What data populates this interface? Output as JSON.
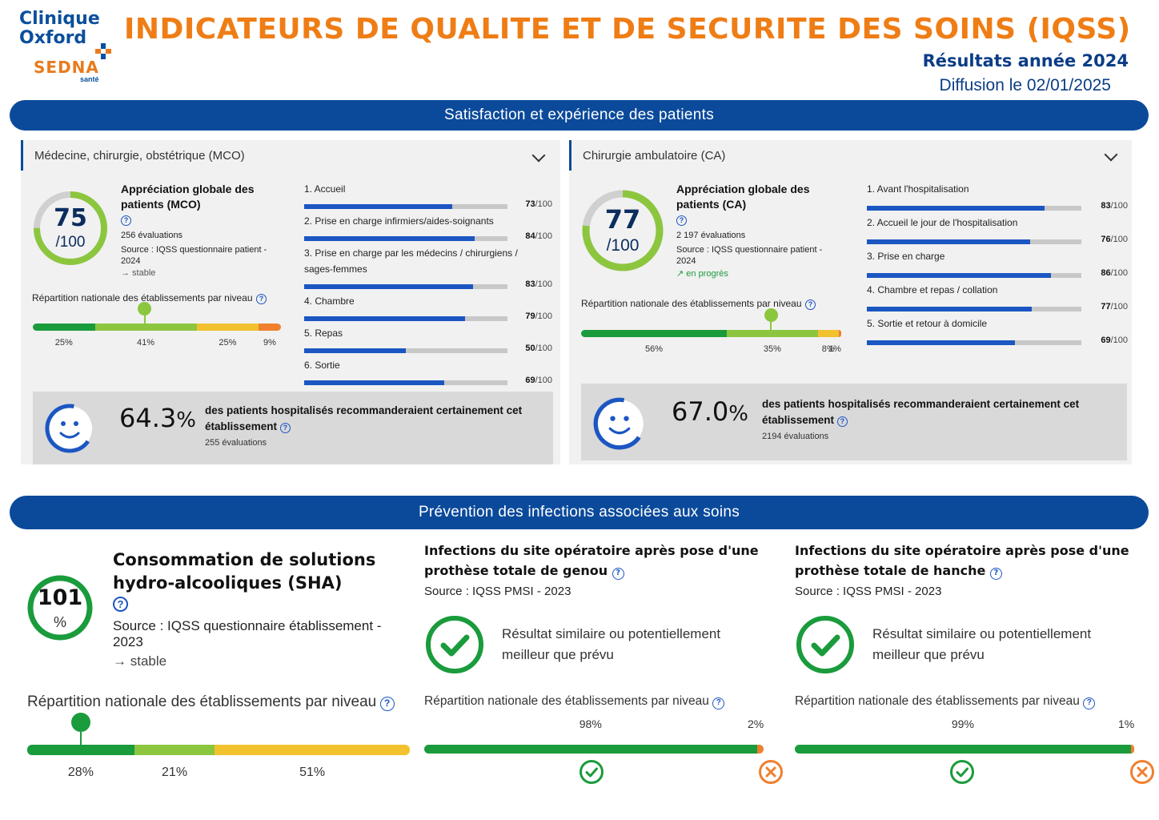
{
  "header": {
    "logo_line1": "Clinique",
    "logo_line2": "Oxford",
    "logo_sedna": "SEDNA",
    "logo_sante": "santé",
    "title": "INDICATEURS DE QUALITE ET DE SECURITE DES SOINS (IQSS)",
    "subtitle": "Résultats année 2024",
    "diffusion": "Diffusion le 02/01/2025"
  },
  "colors": {
    "brand_blue": "#0b4a9b",
    "accent_orange": "#ef7d15",
    "dark_green": "#1a9b3c",
    "light_green": "#8cc63f",
    "yellow": "#f2c12e",
    "orange": "#f07f2e",
    "bar_blue": "#1b56c2"
  },
  "section1": {
    "title": "Satisfaction et expérience des patients",
    "mco": {
      "heading": "Médecine, chirurgie, obstétrique (MCO)",
      "score": "75",
      "score_value": 75,
      "score_max": "/100",
      "score_title": "Appréciation globale des patients (MCO)",
      "evaluations": "256 évaluations",
      "source": "Source : IQSS questionnaire patient - 2024",
      "trend": "→ stable",
      "criteria": [
        {
          "label": "1. Accueil",
          "value": 73,
          "value_text": "73",
          "max": "/100"
        },
        {
          "label": "2. Prise en charge infirmiers/aides-soignants",
          "value": 84,
          "value_text": "84",
          "max": "/100"
        },
        {
          "label": "3. Prise en charge par les médecins / chirurgiens /",
          "label2": "sages-femmes",
          "value": 83,
          "value_text": "83",
          "max": "/100"
        },
        {
          "label": "4. Chambre",
          "value": 79,
          "value_text": "79",
          "max": "/100"
        },
        {
          "label": "5. Repas",
          "value": 50,
          "value_text": "50",
          "max": "/100"
        },
        {
          "label": "6. Sortie",
          "value": 69,
          "value_text": "69",
          "max": "/100"
        }
      ],
      "distribution_label": "Répartition nationale des établissements par niveau",
      "distribution": [
        {
          "pct": 25,
          "label": "25%",
          "color": "#1a9b3c"
        },
        {
          "pct": 41,
          "label": "41%",
          "color": "#8cc63f"
        },
        {
          "pct": 25,
          "label": "25%",
          "color": "#f2c12e"
        },
        {
          "pct": 9,
          "label": "9%",
          "color": "#f07f2e"
        }
      ],
      "marker_position_pct": 45,
      "reco_value": "64.3",
      "reco_unit": "%",
      "reco_text": "des patients hospitalisés recommanderaient certainement cet établissement",
      "reco_evaluations": "255 évaluations"
    },
    "ca": {
      "heading": "Chirurgie ambulatoire (CA)",
      "score": "77",
      "score_value": 77,
      "score_max": "/100",
      "score_title": "Appréciation globale des patients (CA)",
      "evaluations": "2 197 évaluations",
      "source": "Source : IQSS questionnaire patient - 2024",
      "trend": "↗ en progrès",
      "criteria": [
        {
          "label": "1. Avant l'hospitalisation",
          "value": 83,
          "value_text": "83",
          "max": "/100"
        },
        {
          "label": "2. Accueil le jour de l'hospitalisation",
          "value": 76,
          "value_text": "76",
          "max": "/100"
        },
        {
          "label": "3. Prise en charge",
          "value": 86,
          "value_text": "86",
          "max": "/100"
        },
        {
          "label": "4. Chambre et repas / collation",
          "value": 77,
          "value_text": "77",
          "max": "/100"
        },
        {
          "label": "5. Sortie et retour à domicile",
          "value": 69,
          "value_text": "69",
          "max": "/100"
        }
      ],
      "distribution_label": "Répartition nationale des établissements par niveau",
      "distribution": [
        {
          "pct": 56,
          "label": "56%",
          "color": "#1a9b3c"
        },
        {
          "pct": 35,
          "label": "35%",
          "color": "#8cc63f"
        },
        {
          "pct": 8,
          "label": "8%",
          "color": "#f2c12e"
        },
        {
          "pct": 1,
          "label": "1%",
          "color": "#f07f2e"
        }
      ],
      "marker_position_pct": 73,
      "reco_value": "67.0",
      "reco_unit": "%",
      "reco_text": "des patients hospitalisés recommanderaient certainement cet établissement",
      "reco_evaluations": "2194 évaluations"
    }
  },
  "section2": {
    "title": "Prévention des infections associées aux soins",
    "sha": {
      "score": "101",
      "score_value": 101,
      "unit": "%",
      "title_line1": "Consommation de solutions",
      "title_line2": "hydro-alcooliques (SHA)",
      "source": "Source : IQSS questionnaire établissement - 2023",
      "trend": "→ stable",
      "distribution_label": "Répartition nationale des établissements par niveau",
      "distribution": [
        {
          "pct": 28,
          "label": "28%",
          "color": "#1a9b3c"
        },
        {
          "pct": 21,
          "label": "21%",
          "color": "#8cc63f"
        },
        {
          "pct": 51,
          "label": "51%",
          "color": "#f2c12e"
        }
      ],
      "marker_position_pct": 14
    },
    "genou": {
      "title_line1": "Infections du site opératoire après pose d'une",
      "title_line2": "prothèse totale de genou",
      "source": "Source : IQSS PMSI - 2023",
      "result_line1": "Résultat similaire ou potentiellement",
      "result_line2": "meilleur que prévu",
      "distribution_label": "Répartition nationale des établissements par niveau",
      "distribution": [
        {
          "pct": 98,
          "label": "98%",
          "color": "#1a9b3c"
        },
        {
          "pct": 2,
          "label": "2%",
          "color": "#f07f2e"
        }
      ]
    },
    "hanche": {
      "title_line1": "Infections du site opératoire après pose d'une",
      "title_line2": "prothèse totale de hanche",
      "source": "Source : IQSS PMSI - 2023",
      "result_line1": "Résultat similaire ou potentiellement",
      "result_line2": "meilleur que prévu",
      "distribution_label": "Répartition nationale des établissements par niveau",
      "distribution": [
        {
          "pct": 99,
          "label": "99%",
          "color": "#1a9b3c"
        },
        {
          "pct": 1,
          "label": "1%",
          "color": "#f07f2e"
        }
      ]
    }
  }
}
